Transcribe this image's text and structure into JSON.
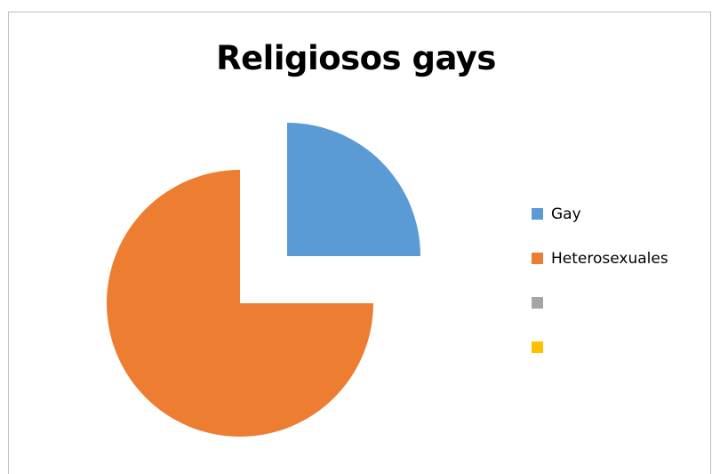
{
  "chart_data": {
    "type": "pie",
    "title": "Religiosos gays",
    "categories": [
      "Gay",
      "Heterosexuales",
      "",
      ""
    ],
    "values": [
      25,
      75,
      0,
      0
    ],
    "colors": [
      "#5b9bd5",
      "#ed7d31",
      "#a5a5a5",
      "#ffc000"
    ],
    "exploded": true,
    "legend_position": "right"
  }
}
